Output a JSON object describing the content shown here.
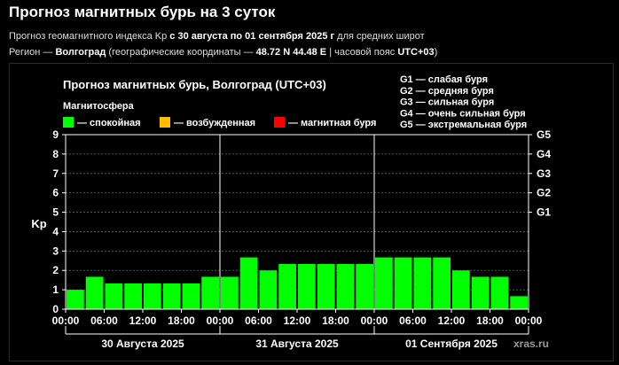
{
  "header": {
    "title": "Прогноз магнитных бурь на 3 суток",
    "sub_prefix": "Прогноз геомагнитного индекса Kp ",
    "sub_range": "с 30 августа по 01 сентября 2025 г",
    "sub_suffix": " для средних широт",
    "region_prefix": "Регион — ",
    "region_city": "Волгоград",
    "region_mid": " (географические координаты — ",
    "region_coords": "48.72 N 44.48 E",
    "region_tz_prefix": " | часовой пояс ",
    "region_tz": "UTC+03",
    "region_suffix": ")"
  },
  "chart_data": {
    "type": "bar",
    "title": "Прогноз магнитных бурь, Волгоград (UTC+03)",
    "ylabel": "Kp",
    "ylim": [
      0,
      9
    ],
    "yticks": [
      0,
      1,
      2,
      3,
      4,
      5,
      6,
      7,
      8,
      9
    ],
    "right_ticks": [
      {
        "label": "G1",
        "value": 5
      },
      {
        "label": "G2",
        "value": 6
      },
      {
        "label": "G3",
        "value": 7
      },
      {
        "label": "G4",
        "value": 8
      },
      {
        "label": "G5",
        "value": 9
      }
    ],
    "xtick_labels": [
      "00:00",
      "06:00",
      "12:00",
      "18:00",
      "00:00",
      "06:00",
      "12:00",
      "18:00",
      "00:00",
      "06:00",
      "12:00",
      "18:00",
      "00:00"
    ],
    "days": [
      "30 Августа 2025",
      "31 Августа 2025",
      "01 Сентября 2025"
    ],
    "values": [
      1.0,
      1.67,
      1.33,
      1.33,
      1.33,
      1.33,
      1.33,
      1.67,
      1.67,
      2.67,
      2.0,
      2.33,
      2.33,
      2.33,
      2.33,
      2.33,
      2.67,
      2.67,
      2.67,
      2.67,
      2.0,
      1.67,
      1.67,
      0.67
    ],
    "bar_color": "#00ff00",
    "legend": {
      "heading": "Магнитосфера",
      "items": [
        {
          "label": " — спокойная",
          "color": "#00ff00"
        },
        {
          "label": " — возбужденная",
          "color": "#ffbf00"
        },
        {
          "label": " — магнитная буря",
          "color": "#ff0000"
        }
      ]
    },
    "storm_scale": [
      "G1 — слабая буря",
      "G2 — средняя буря",
      "G3 — сильная буря",
      "G4 — очень сильная буря",
      "G5 — экстремальная буря"
    ],
    "watermark": "xras.ru",
    "grid": true
  }
}
